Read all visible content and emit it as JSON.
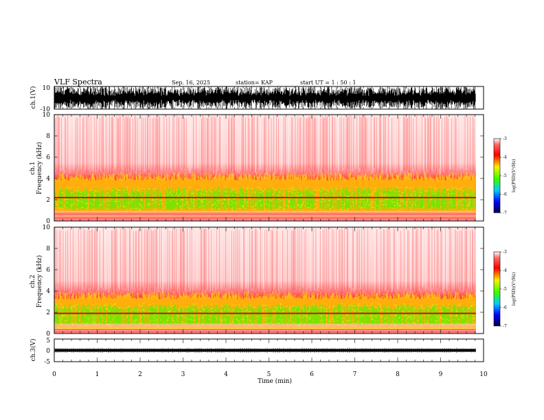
{
  "header": {
    "title": "VLF Spectra",
    "date": "Sep. 16, 2025",
    "station": "station= KAP",
    "start_time": "start  UT =  1 : 50 : 1"
  },
  "chart_data": {
    "type": "heatmap",
    "xlabel": "Time  (min)",
    "xlim": [
      0,
      10
    ],
    "x_ticks": [
      "0",
      "1",
      "2",
      "3",
      "4",
      "5",
      "6",
      "7",
      "8",
      "9",
      "10"
    ],
    "panels": [
      {
        "id": "ch1-waveform",
        "kind": "waveform",
        "ylabel": "ch.1(V)",
        "ylim": [
          -10,
          10
        ],
        "y_ticks": [
          "10",
          "-10"
        ],
        "amplitude": 10
      },
      {
        "id": "ch1-spectrogram",
        "kind": "spectrogram",
        "ylabel_line1": "ch.1",
        "ylabel_line2": "Frequency  (kHz)",
        "ylim": [
          0,
          10
        ],
        "y_ticks": [
          "0",
          "2",
          "4",
          "6",
          "8",
          "10"
        ],
        "green_band_khz": [
          1.0,
          3.2
        ],
        "yellow_band_khz": [
          0.8,
          4.2
        ],
        "lines_khz": [
          2.2,
          0.5
        ],
        "colorbar": {
          "label": "log(PSD)(V²/Hz)",
          "range": [
            -7,
            -3
          ],
          "ticks": [
            "-3",
            "-4",
            "-5",
            "-6",
            "-7"
          ]
        }
      },
      {
        "id": "ch2-spectrogram",
        "kind": "spectrogram",
        "ylabel_line1": "ch.2",
        "ylabel_line2": "Frequency  (kHz)",
        "ylim": [
          0,
          10
        ],
        "y_ticks": [
          "0",
          "2",
          "4",
          "6",
          "8",
          "10"
        ],
        "green_band_khz": [
          0.7,
          2.8
        ],
        "yellow_band_khz": [
          0.5,
          3.6
        ],
        "lines_khz": [
          1.9,
          0.5
        ],
        "colorbar": {
          "label": "log(PSD)(V²/Hz)",
          "range": [
            -7,
            -3
          ],
          "ticks": [
            "-3",
            "-4",
            "-5",
            "-6",
            "-7"
          ]
        }
      },
      {
        "id": "ch3-waveform",
        "kind": "waveform",
        "ylabel": "ch.3(V)",
        "ylim": [
          -5,
          5
        ],
        "y_ticks": [
          "5",
          "0",
          "-5"
        ],
        "amplitude": 0.6,
        "offset": 0
      }
    ],
    "data_end_min": 9.82
  },
  "colors": {
    "red": "#ff1a1a",
    "pink": "#ffb3b3",
    "yellow": "#ffee00",
    "green": "#33ff00",
    "ink": "#000000"
  }
}
